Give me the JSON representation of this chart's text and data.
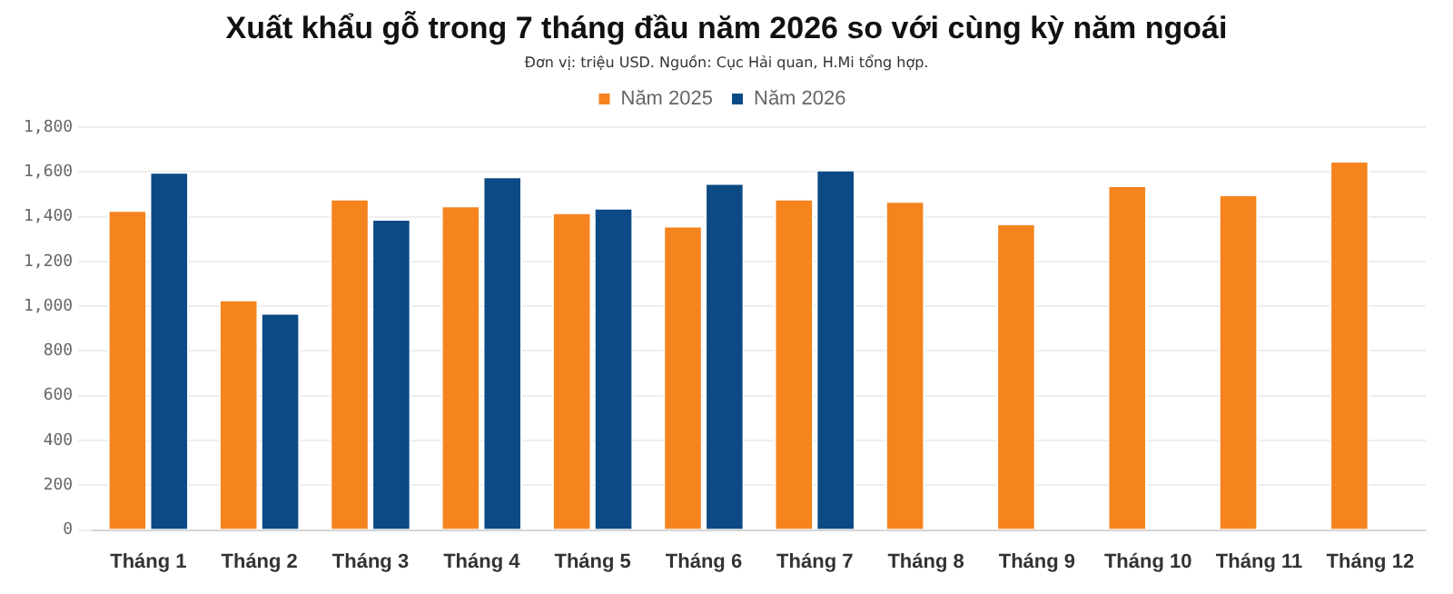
{
  "chart_data": {
    "type": "bar",
    "title": "Xuất khẩu gỗ trong 7 tháng đầu năm 2026 so với cùng kỳ năm ngoái",
    "subtitle": "Đơn vị: triệu USD. Nguồn: Cục Hải quan, H.Mi tổng hợp.",
    "categories": [
      "Tháng 1",
      "Tháng 2",
      "Tháng 3",
      "Tháng 4",
      "Tháng 5",
      "Tháng 6",
      "Tháng 7",
      "Tháng 8",
      "Tháng 9",
      "Tháng 10",
      "Tháng 11",
      "Tháng 12"
    ],
    "series": [
      {
        "name": "Năm 2025",
        "color": "#f5841f",
        "values": [
          1430,
          1030,
          1480,
          1450,
          1420,
          1360,
          1480,
          1470,
          1370,
          1540,
          1500,
          1650
        ]
      },
      {
        "name": "Năm 2026",
        "color": "#0b4a84",
        "values": [
          1600,
          970,
          1390,
          1580,
          1440,
          1550,
          1610,
          null,
          null,
          null,
          null,
          null
        ]
      }
    ],
    "ylim": [
      0,
      1800
    ],
    "yticks": [
      0,
      200,
      400,
      600,
      800,
      {
        "value": 1000,
        "label": "1,000"
      },
      {
        "value": 1200,
        "label": "1,200"
      },
      {
        "value": 1400,
        "label": "1,400"
      },
      {
        "value": 1600,
        "label": "1,600"
      },
      {
        "value": 1800,
        "label": "1,800"
      }
    ],
    "grid": "y",
    "legend": "top"
  }
}
